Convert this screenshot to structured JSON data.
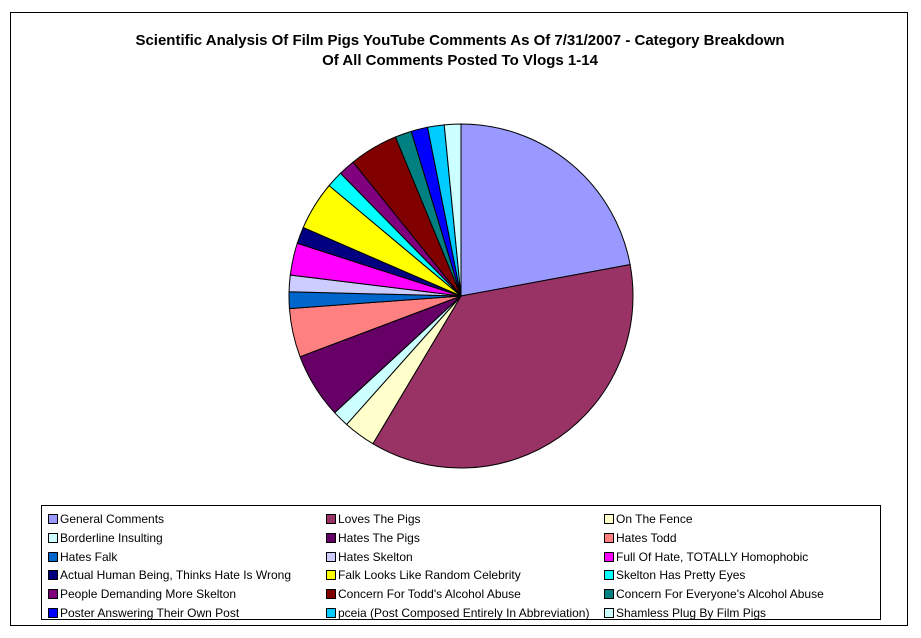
{
  "chart_data": {
    "type": "pie",
    "title": [
      "Scientific Analysis Of Film Pigs YouTube Comments As Of 7/31/2007 - Category Breakdown",
      "Of All Comments Posted To Vlogs 1-14"
    ],
    "slices": [
      {
        "label": "General Comments",
        "value": 22.7,
        "color": "#9999FF"
      },
      {
        "label": "Loves The Pigs",
        "value": 37.5,
        "color": "#993366"
      },
      {
        "label": "On The Fence",
        "value": 3.1,
        "color": "#FFFFCC"
      },
      {
        "label": "Borderline Insulting",
        "value": 1.6,
        "color": "#CCFFFF"
      },
      {
        "label": "Hates The Pigs",
        "value": 6.3,
        "color": "#660066"
      },
      {
        "label": "Hates Todd",
        "value": 4.7,
        "color": "#FF8080"
      },
      {
        "label": "Hates Falk",
        "value": 1.6,
        "color": "#0066CC"
      },
      {
        "label": "Hates Skelton",
        "value": 1.6,
        "color": "#CCCCFF"
      },
      {
        "label": "Full Of Hate, TOTALLY Homophobic",
        "value": 3.1,
        "color": "#FF00FF"
      },
      {
        "label": "Actual Human Being, Thinks Hate Is Wrong",
        "value": 1.6,
        "color": "#000080"
      },
      {
        "label": "Falk Looks Like Random Celebrity",
        "value": 4.7,
        "color": "#FFFF00"
      },
      {
        "label": "Skelton Has Pretty Eyes",
        "value": 1.6,
        "color": "#00FFFF"
      },
      {
        "label": "People Demanding More Skelton",
        "value": 1.6,
        "color": "#800080"
      },
      {
        "label": "Concern For Todd's Alcohol Abuse",
        "value": 4.7,
        "color": "#800000"
      },
      {
        "label": "Concern For Everyone's Alcohol Abuse",
        "value": 1.6,
        "color": "#008080"
      },
      {
        "label": "Poster Answering Their Own Post",
        "value": 1.6,
        "color": "#0000FF"
      },
      {
        "label": "pceia (Post Composed Entirely In Abbreviation)",
        "value": 1.6,
        "color": "#00CCFF"
      },
      {
        "label": "Shamless Plug By Film Pigs",
        "value": 1.6,
        "color": "#CCFFFF"
      }
    ],
    "legend_position": "bottom"
  }
}
